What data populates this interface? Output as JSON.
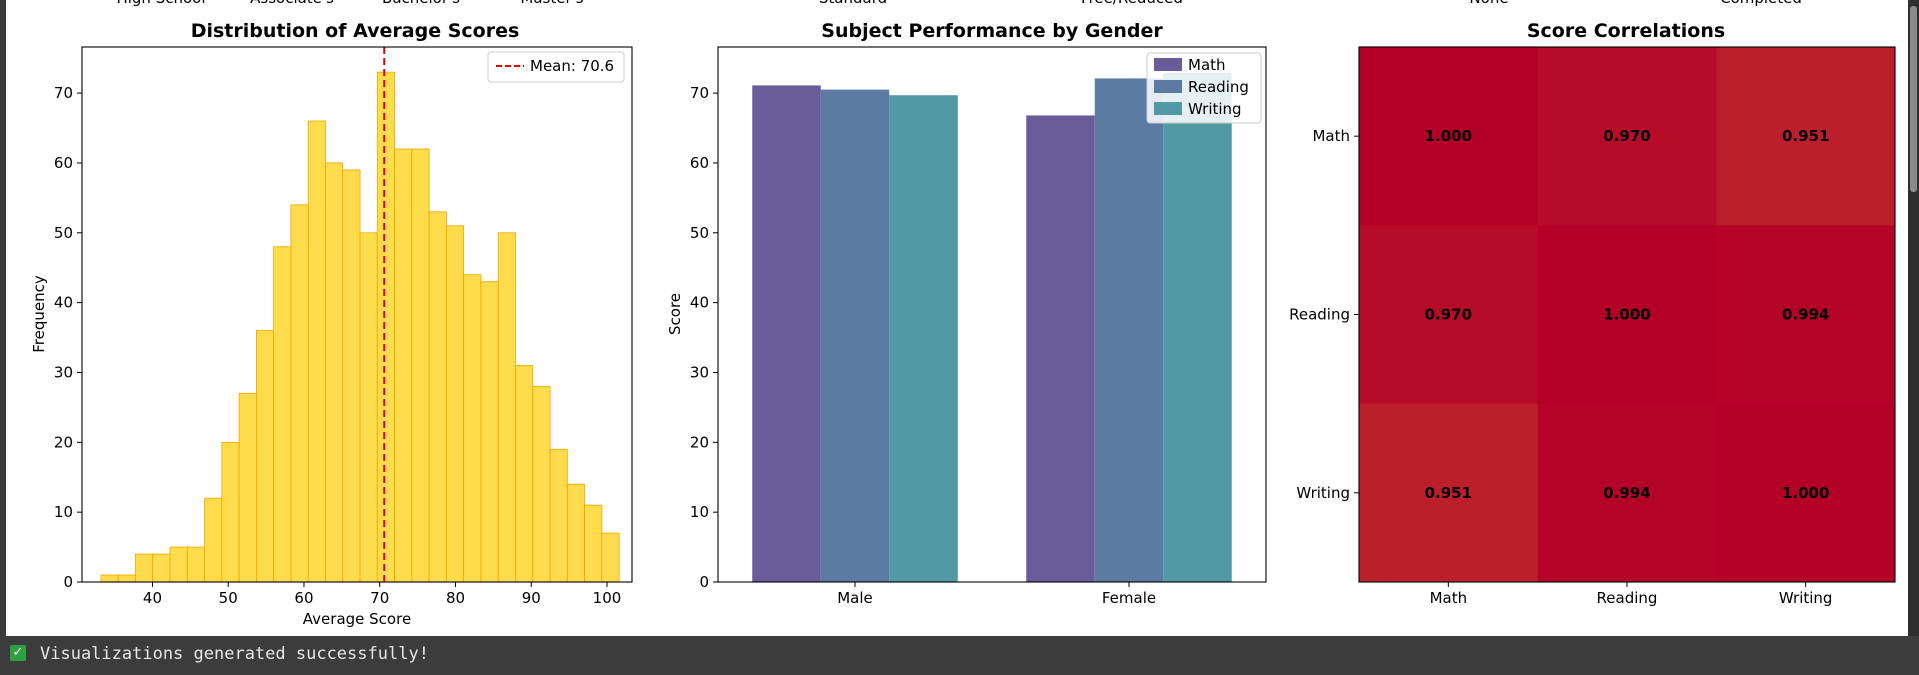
{
  "status": {
    "icon": "check-icon",
    "text": "Visualizations generated successfully!"
  },
  "top_clipped": [
    "High School",
    "Associate's",
    "Bachelor's",
    "Master's",
    "Standard",
    "Free/Reduced",
    "None",
    "Completed"
  ],
  "chart_data": [
    {
      "type": "bar",
      "subtype": "histogram",
      "title": "Distribution of Average Scores",
      "xlabel": "Average Score",
      "ylabel": "Frequency",
      "xlim": [
        30.7,
        103.3
      ],
      "ylim": [
        0,
        76.6
      ],
      "xticks": [
        40,
        50,
        60,
        70,
        80,
        90,
        100
      ],
      "yticks": [
        0,
        10,
        20,
        30,
        40,
        50,
        60,
        70
      ],
      "bin_start": 33.2,
      "bin_width": 2.28,
      "counts": [
        1,
        1,
        4,
        4,
        5,
        5,
        12,
        20,
        27,
        36,
        48,
        54,
        66,
        60,
        59,
        50,
        73,
        62,
        62,
        53,
        51,
        44,
        43,
        50,
        31,
        28,
        19,
        14,
        11,
        7
      ],
      "mean": 70.6,
      "mean_label": "Mean: 70.6",
      "legend": "top-right",
      "colors": {
        "fill": "#ffd93d",
        "edge": "#f0a500",
        "mean_line": "#e00000"
      }
    },
    {
      "type": "bar",
      "title": "Subject Performance by Gender",
      "xlabel": "",
      "ylabel": "Score",
      "ylim": [
        0,
        76.6
      ],
      "yticks": [
        0,
        10,
        20,
        30,
        40,
        50,
        60,
        70
      ],
      "categories": [
        "Male",
        "Female"
      ],
      "series": [
        {
          "name": "Math",
          "values": [
            71.1,
            66.8
          ],
          "color": "#6a5c99"
        },
        {
          "name": "Reading",
          "values": [
            70.5,
            72.1
          ],
          "color": "#5b7ba3"
        },
        {
          "name": "Writing",
          "values": [
            69.7,
            72.9
          ],
          "color": "#5199a5"
        }
      ],
      "legend": "top-right"
    },
    {
      "type": "heatmap",
      "title": "Score Correlations",
      "rows": [
        "Math",
        "Reading",
        "Writing"
      ],
      "cols": [
        "Math",
        "Reading",
        "Writing"
      ],
      "values": [
        [
          1.0,
          0.97,
          0.951
        ],
        [
          0.97,
          1.0,
          0.994
        ],
        [
          0.951,
          0.994,
          1.0
        ]
      ],
      "labels": [
        [
          "1.000",
          "0.970",
          "0.951"
        ],
        [
          "0.970",
          "1.000",
          "0.994"
        ],
        [
          "0.951",
          "0.994",
          "1.000"
        ]
      ],
      "colors": {
        "high": "#b40027",
        "low": "#bc1f2c"
      }
    }
  ]
}
